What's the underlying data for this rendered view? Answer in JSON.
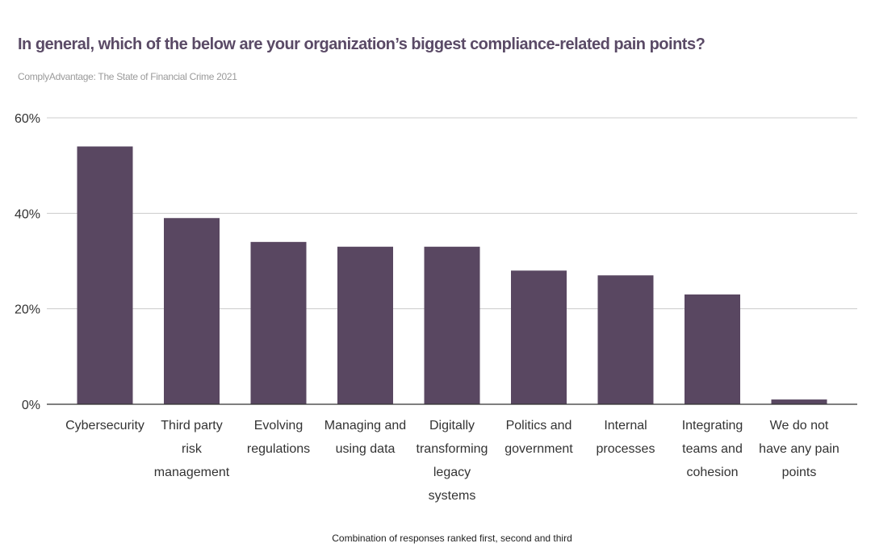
{
  "chart_data": {
    "type": "bar",
    "title": "In general, which of the below are your organization’s biggest compliance-related pain points?",
    "subtitle": "ComplyAdvantage: The State of Financial Crime 2021",
    "xlabel": "Combination of responses ranked first, second and third",
    "ylabel": "",
    "ylim": [
      0,
      60
    ],
    "yticks": [
      "0%",
      "20%",
      "40%",
      "60%"
    ],
    "grid": true,
    "categories": [
      "Cybersecurity",
      "Third party risk management",
      "Evolving regulations",
      "Managing and using data",
      "Digitally transforming legacy systems",
      "Politics and government",
      "Internal processes",
      "Integrating teams and cohesion",
      "We do not have any pain points"
    ],
    "category_lines": [
      [
        "Cybersecurity"
      ],
      [
        "Third party",
        "risk",
        "management"
      ],
      [
        "Evolving",
        "regulations"
      ],
      [
        "Managing and",
        "using data"
      ],
      [
        "Digitally",
        "transforming",
        "legacy",
        "systems"
      ],
      [
        "Politics and",
        "government"
      ],
      [
        "Internal",
        "processes"
      ],
      [
        "Integrating",
        "teams and",
        "cohesion"
      ],
      [
        "We do not",
        "have any pain",
        "points"
      ]
    ],
    "values": [
      54,
      39,
      34,
      33,
      33,
      28,
      27,
      23,
      1
    ],
    "bar_color": "#594761"
  }
}
